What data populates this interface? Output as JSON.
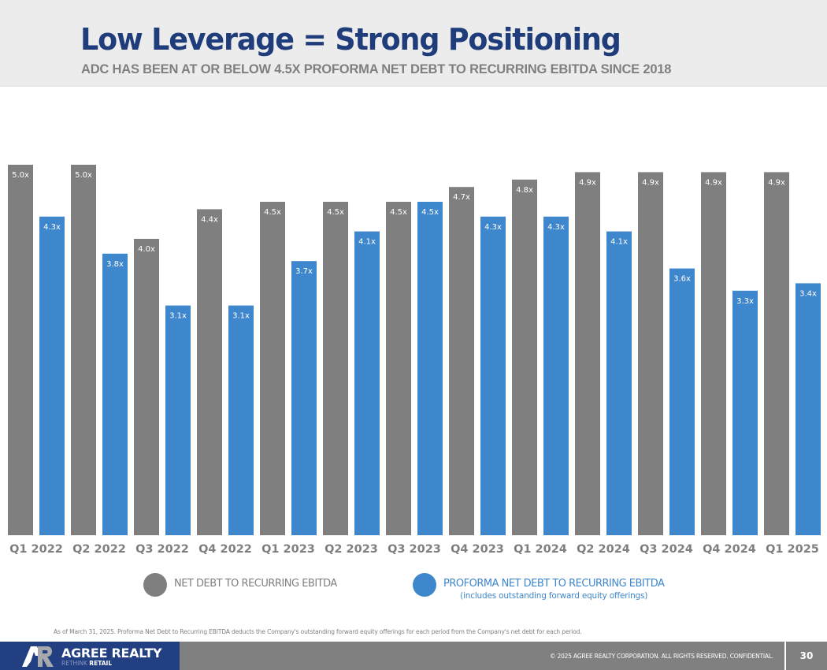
{
  "header": {
    "title": "Low Leverage = Strong Positioning",
    "subtitle": "ADC HAS BEEN AT OR BELOW 4.5X PROFORMA NET DEBT TO RECURRING EBITDA SINCE 2018"
  },
  "colors": {
    "title": "#1f3d7a",
    "net_debt": "#7f7f7f",
    "proforma": "#3f87cc",
    "brand": "#223f82"
  },
  "chart_data": {
    "type": "bar",
    "title": "",
    "xlabel": "",
    "ylabel": "",
    "ylim": [
      0,
      5.0
    ],
    "grid": false,
    "categories": [
      "Q1 2022",
      "Q2 2022",
      "Q3 2022",
      "Q4 2022",
      "Q1 2023",
      "Q2 2023",
      "Q3 2023",
      "Q4 2023",
      "Q1 2024",
      "Q2 2024",
      "Q3 2024",
      "Q4 2024",
      "Q1 2025"
    ],
    "series": [
      {
        "name": "NET DEBT TO RECURRING EBITDA",
        "color": "#7f7f7f",
        "values": [
          5.0,
          5.0,
          4.0,
          4.4,
          4.5,
          4.5,
          4.5,
          4.7,
          4.8,
          4.9,
          4.9,
          4.9,
          4.9
        ],
        "labels": [
          "5.0x",
          "5.0x",
          "4.0x",
          "4.4x",
          "4.5x",
          "4.5x",
          "4.5x",
          "4.7x",
          "4.8x",
          "4.9x",
          "4.9x",
          "4.9x",
          "4.9x"
        ]
      },
      {
        "name": "PROFORMA NET DEBT TO RECURRING EBITDA",
        "color": "#3f87cc",
        "values": [
          4.3,
          3.8,
          3.1,
          3.1,
          3.7,
          4.1,
          4.5,
          4.3,
          4.3,
          4.1,
          3.6,
          3.3,
          3.4
        ],
        "labels": [
          "4.3x",
          "3.8x",
          "3.1x",
          "3.1x",
          "3.7x",
          "4.1x",
          "4.5x",
          "4.3x",
          "4.3x",
          "4.1x",
          "3.6x",
          "3.3x",
          "3.4x"
        ]
      }
    ],
    "legend": "bottom"
  },
  "legend": {
    "items": [
      {
        "label": "NET DEBT TO RECURRING EBITDA",
        "sublabel": ""
      },
      {
        "label": "PROFORMA NET DEBT TO RECURRING EBITDA",
        "sublabel": "(includes outstanding forward equity offerings)"
      }
    ]
  },
  "footnote": "As of March 31, 2025. Proforma Net Debt to Recurring EBITDA deducts the Company's outstanding forward equity offerings for each period from the Company's net debt for each period.",
  "footer": {
    "brand_name": "AGREE REALTY",
    "brand_tag_light": "RETHINK ",
    "brand_tag_bold": "RETAIL",
    "copyright": "© 2025 AGREE REALTY CORPORATION. ALL RIGHTS RESERVED. CONFIDENTIAL.",
    "page_number": "30"
  }
}
